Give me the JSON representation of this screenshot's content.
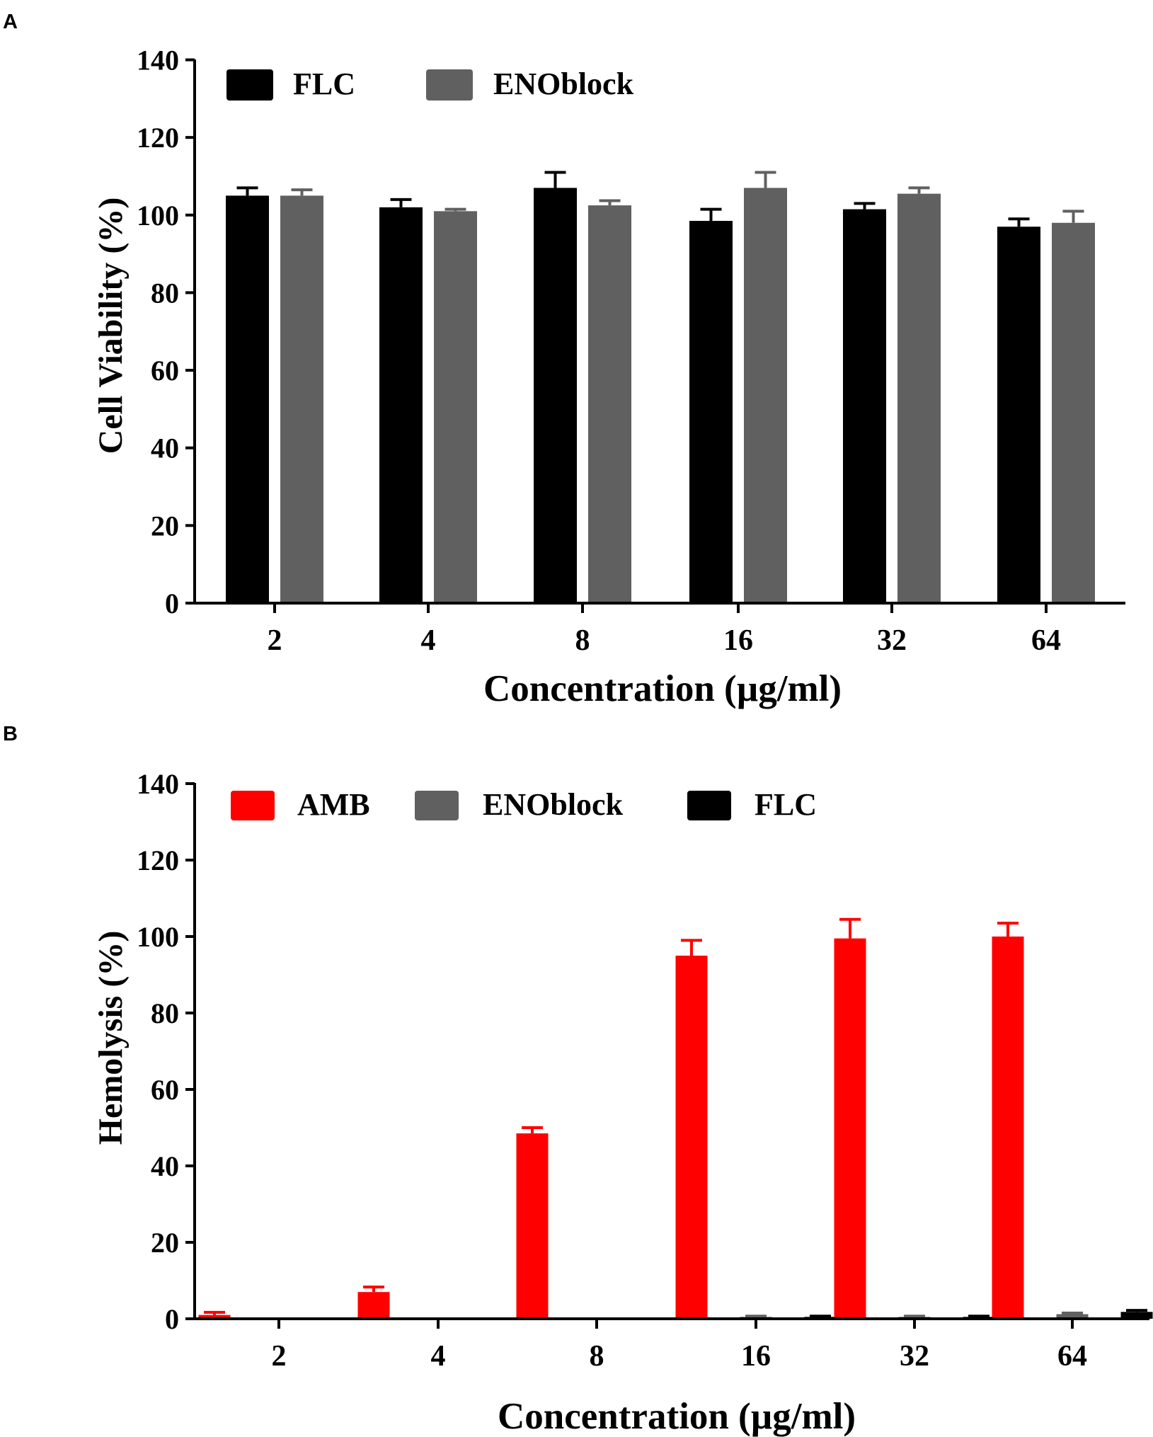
{
  "figure": {
    "panels": [
      "A",
      "B"
    ]
  },
  "chart_data": [
    {
      "panel_label": "A",
      "type": "bar",
      "title": "",
      "xlabel": "Concentration (µg/ml)",
      "ylabel": "Cell Viability (%)",
      "ylim": [
        0,
        140
      ],
      "yticks": [
        0,
        20,
        40,
        60,
        80,
        100,
        120,
        140
      ],
      "categories": [
        "2",
        "4",
        "8",
        "16",
        "32",
        "64"
      ],
      "legend_position": "top-left",
      "series": [
        {
          "name": "FLC",
          "color": "#000000",
          "values": [
            105,
            102,
            107,
            98.5,
            101.5,
            97
          ],
          "errors": [
            2,
            2,
            4,
            3,
            1.5,
            2
          ]
        },
        {
          "name": "ENOblock",
          "color": "#606060",
          "values": [
            105,
            101,
            102.5,
            107,
            105.5,
            98
          ],
          "errors": [
            1.5,
            0.5,
            1.2,
            4,
            1.5,
            3
          ]
        }
      ]
    },
    {
      "panel_label": "B",
      "type": "bar",
      "title": "",
      "xlabel": "Concentration (µg/ml)",
      "ylabel": "Hemolysis (%)",
      "ylim": [
        0,
        140
      ],
      "yticks": [
        0,
        20,
        40,
        60,
        80,
        100,
        120,
        140
      ],
      "categories": [
        "2",
        "4",
        "8",
        "16",
        "32",
        "64"
      ],
      "legend_position": "top-left",
      "series": [
        {
          "name": "AMB",
          "color": "#ff0000",
          "values": [
            1,
            7,
            48.5,
            95,
            99.5,
            100
          ],
          "errors": [
            0.7,
            1.3,
            1.5,
            4,
            5,
            3.5
          ]
        },
        {
          "name": "ENOblock",
          "color": "#606060",
          "values": [
            0.2,
            0.2,
            0.2,
            0.5,
            0.5,
            1.2
          ],
          "errors": [
            0,
            0,
            0,
            0.2,
            0.2,
            0.3
          ]
        },
        {
          "name": "FLC",
          "color": "#000000",
          "values": [
            0.2,
            0.3,
            0.3,
            0.5,
            0.5,
            1.8
          ],
          "errors": [
            0,
            0,
            0,
            0.2,
            0.2,
            0.4
          ]
        }
      ]
    }
  ]
}
